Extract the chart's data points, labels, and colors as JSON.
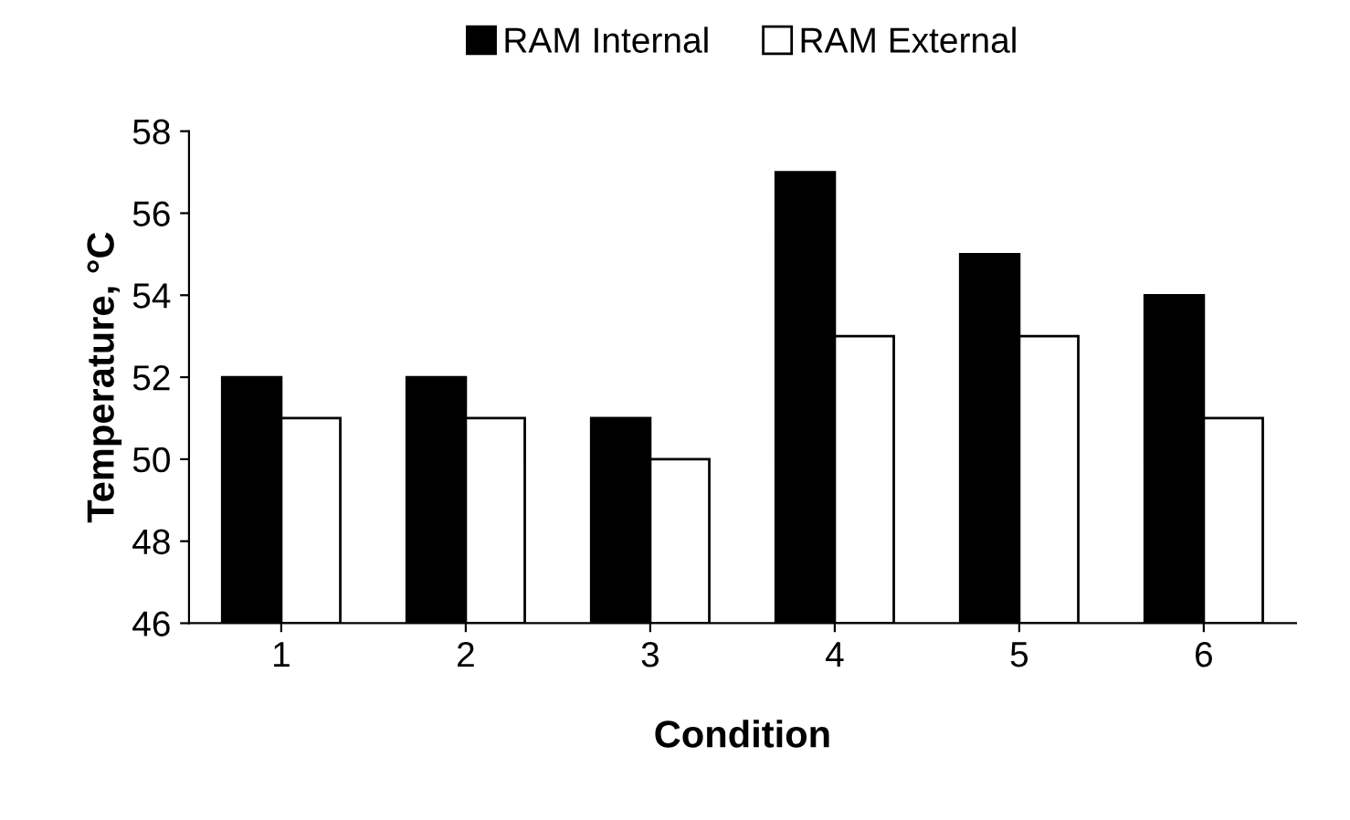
{
  "chart_data": {
    "type": "bar",
    "xlabel": "Condition",
    "ylabel": "Temperature, °C",
    "categories": [
      "1",
      "2",
      "3",
      "4",
      "5",
      "6"
    ],
    "series": [
      {
        "name": "RAM Internal",
        "color": "#000000",
        "values": [
          52,
          52,
          51,
          57,
          55,
          54
        ]
      },
      {
        "name": "RAM External",
        "color": "#ffffff",
        "values": [
          51,
          51,
          50,
          53,
          53,
          51
        ]
      }
    ],
    "ylim": [
      46,
      58
    ],
    "yticks": [
      46,
      48,
      50,
      52,
      54,
      56,
      58
    ],
    "grid": false,
    "legend": "top"
  }
}
